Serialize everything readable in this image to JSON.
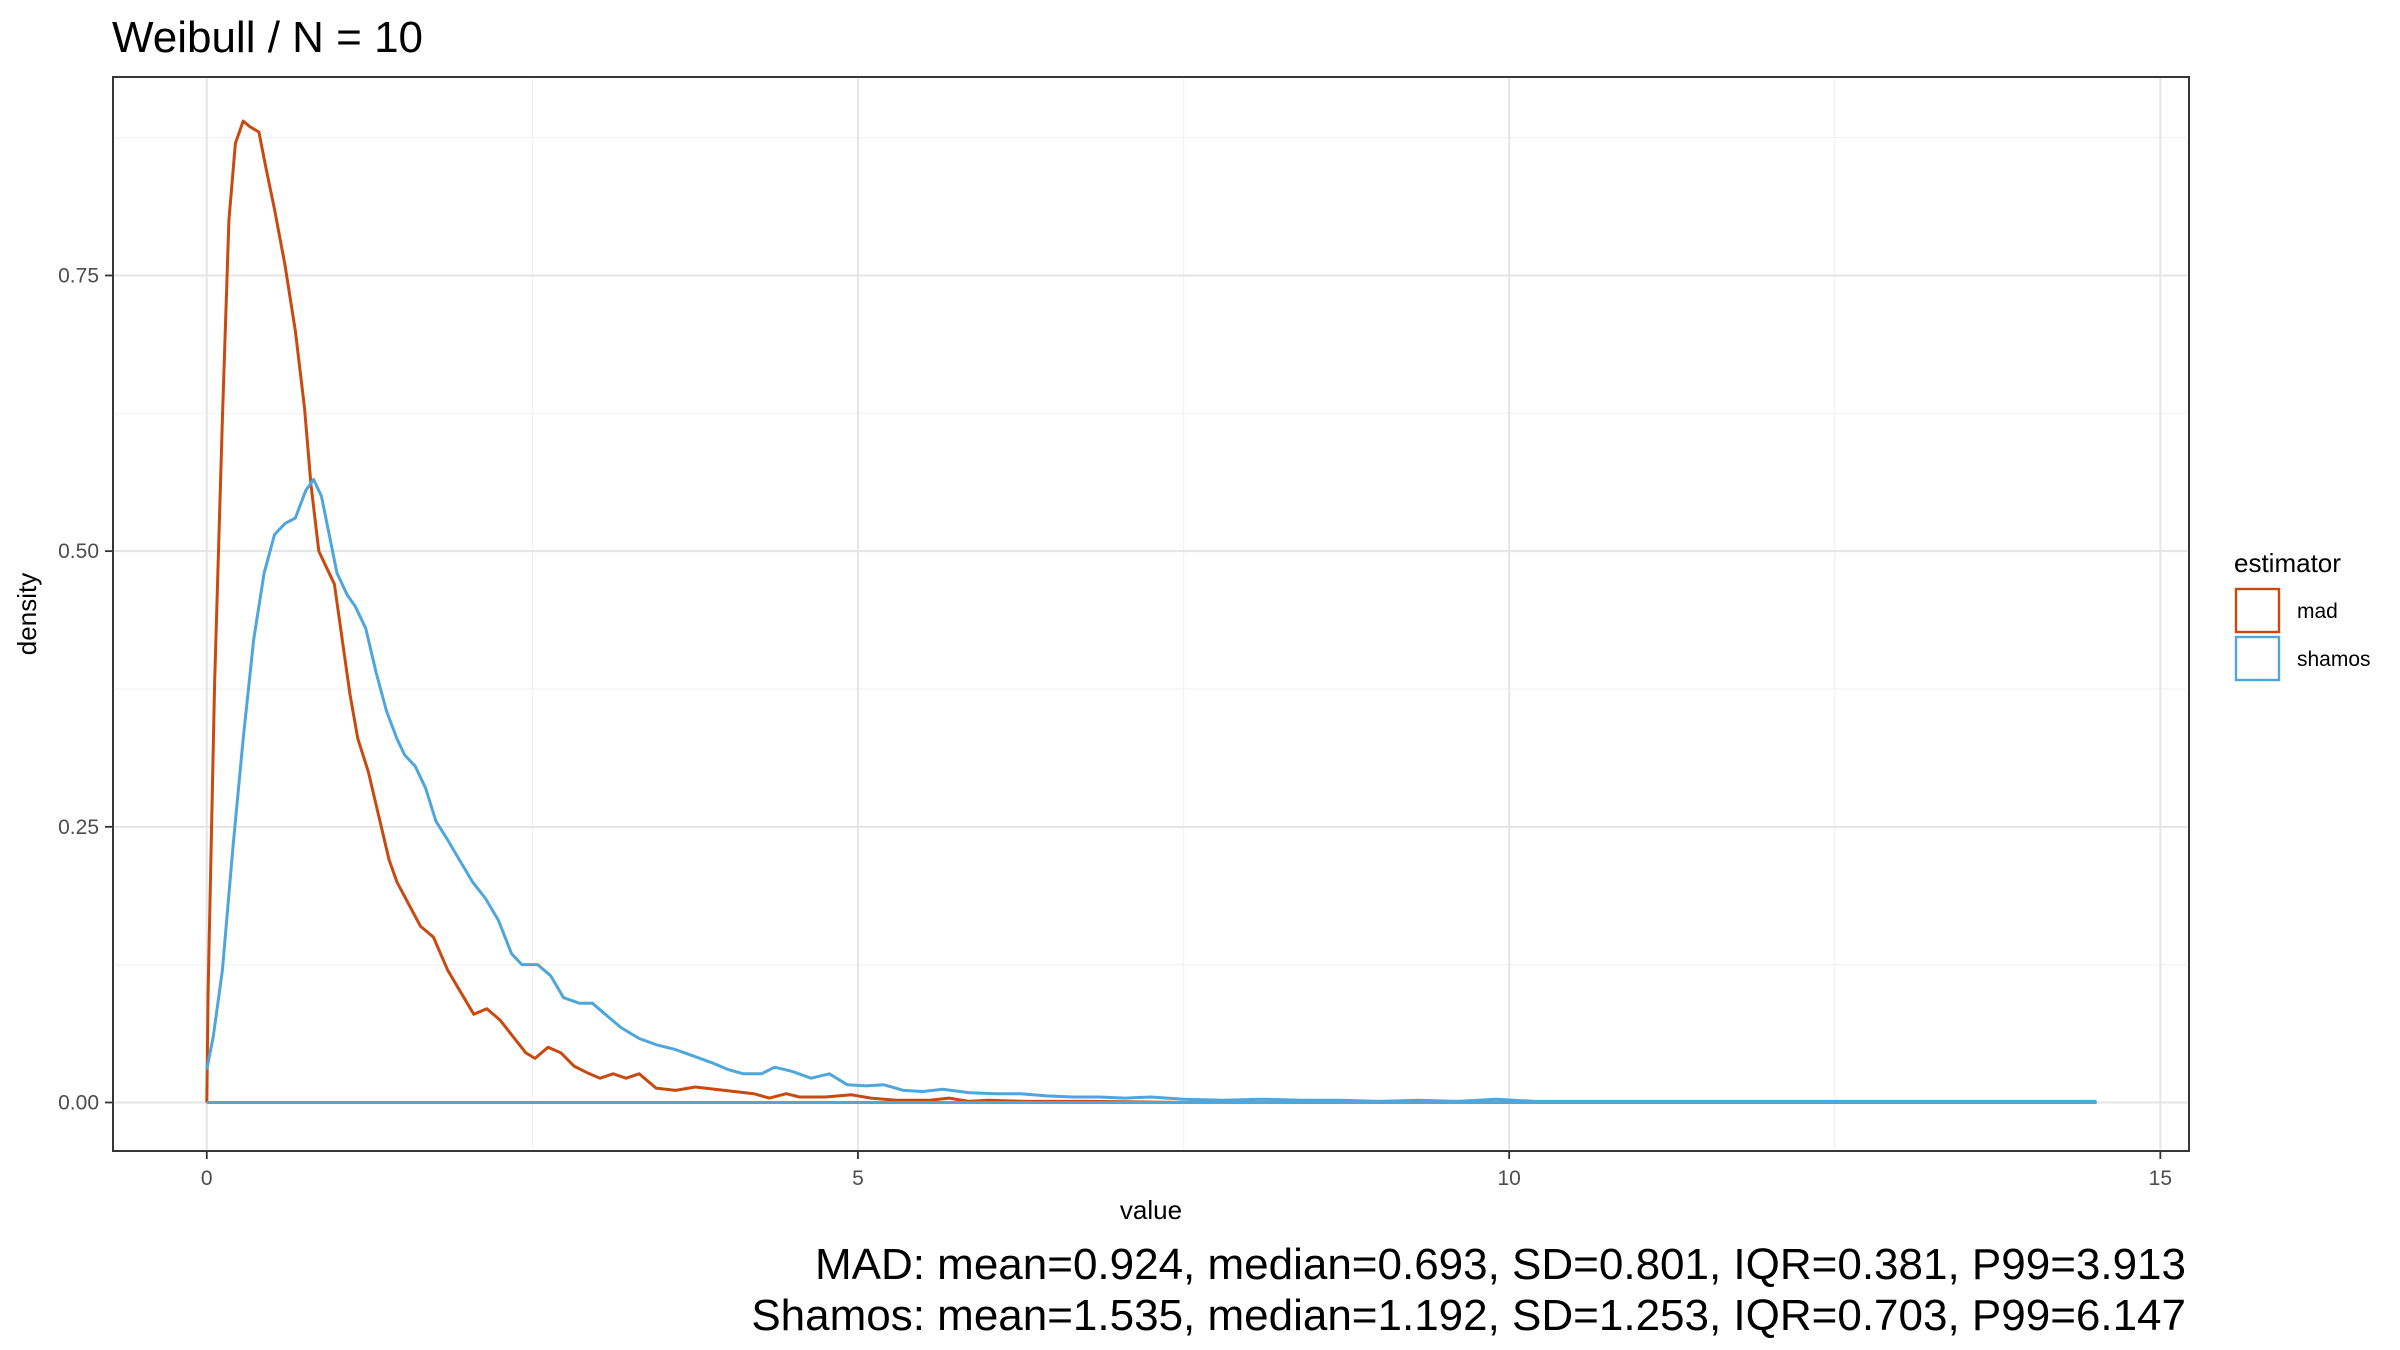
{
  "chart_data": {
    "type": "line",
    "title": "Weibull / N = 10",
    "xlabel": "value",
    "ylabel": "density",
    "xlim": [
      -0.72,
      15.22
    ],
    "ylim": [
      -0.044,
      0.93
    ],
    "x_ticks": [
      0,
      5,
      10,
      15
    ],
    "x_tick_labels": [
      "0",
      "5",
      "10",
      "15"
    ],
    "y_ticks": [
      0,
      0.25,
      0.5,
      0.75
    ],
    "y_tick_labels": [
      "0.00",
      "0.25",
      "0.50",
      "0.75"
    ],
    "grid": true,
    "legend": {
      "title": "estimator",
      "position": "right"
    },
    "series": [
      {
        "name": "mad",
        "color": "#C94A10",
        "points": [
          [
            0,
            0
          ],
          [
            0.01,
            0.1
          ],
          [
            0.06,
            0.38
          ],
          [
            0.12,
            0.62
          ],
          [
            0.17,
            0.8
          ],
          [
            0.22,
            0.87
          ],
          [
            0.28,
            0.89
          ],
          [
            0.33,
            0.885
          ],
          [
            0.4,
            0.88
          ],
          [
            0.45,
            0.85
          ],
          [
            0.52,
            0.81
          ],
          [
            0.6,
            0.76
          ],
          [
            0.68,
            0.7
          ],
          [
            0.75,
            0.63
          ],
          [
            0.8,
            0.56
          ],
          [
            0.86,
            0.5
          ],
          [
            0.92,
            0.485
          ],
          [
            0.98,
            0.47
          ],
          [
            1.04,
            0.42
          ],
          [
            1.1,
            0.37
          ],
          [
            1.16,
            0.33
          ],
          [
            1.24,
            0.3
          ],
          [
            1.32,
            0.26
          ],
          [
            1.4,
            0.22
          ],
          [
            1.46,
            0.2
          ],
          [
            1.55,
            0.18
          ],
          [
            1.64,
            0.16
          ],
          [
            1.74,
            0.15
          ],
          [
            1.85,
            0.12
          ],
          [
            1.95,
            0.1
          ],
          [
            2.05,
            0.08
          ],
          [
            2.15,
            0.085
          ],
          [
            2.25,
            0.075
          ],
          [
            2.35,
            0.06
          ],
          [
            2.45,
            0.045
          ],
          [
            2.52,
            0.04
          ],
          [
            2.62,
            0.05
          ],
          [
            2.72,
            0.045
          ],
          [
            2.82,
            0.033
          ],
          [
            2.92,
            0.027
          ],
          [
            3.02,
            0.022
          ],
          [
            3.12,
            0.026
          ],
          [
            3.22,
            0.022
          ],
          [
            3.32,
            0.026
          ],
          [
            3.45,
            0.013
          ],
          [
            3.6,
            0.011
          ],
          [
            3.75,
            0.014
          ],
          [
            3.9,
            0.012
          ],
          [
            4.05,
            0.01
          ],
          [
            4.2,
            0.008
          ],
          [
            4.32,
            0.004
          ],
          [
            4.45,
            0.008
          ],
          [
            4.55,
            0.005
          ],
          [
            4.75,
            0.005
          ],
          [
            4.95,
            0.007
          ],
          [
            5.1,
            0.004
          ],
          [
            5.3,
            0.002
          ],
          [
            5.55,
            0.002
          ],
          [
            5.7,
            0.004
          ],
          [
            5.85,
            0.001
          ],
          [
            6.0,
            0.002
          ],
          [
            6.3,
            0.001
          ],
          [
            6.8,
            0.001
          ],
          [
            7.5,
            0.0
          ],
          [
            8.5,
            0.0
          ],
          [
            10.5,
            0.0
          ],
          [
            12.5,
            0.0
          ],
          [
            14.5,
            0.0
          ]
        ]
      },
      {
        "name": "shamos",
        "color": "#4EA6DC",
        "points": [
          [
            0,
            0.03
          ],
          [
            0.05,
            0.06
          ],
          [
            0.12,
            0.12
          ],
          [
            0.2,
            0.23
          ],
          [
            0.28,
            0.33
          ],
          [
            0.36,
            0.42
          ],
          [
            0.44,
            0.48
          ],
          [
            0.52,
            0.515
          ],
          [
            0.6,
            0.525
          ],
          [
            0.68,
            0.53
          ],
          [
            0.76,
            0.555
          ],
          [
            0.82,
            0.565
          ],
          [
            0.88,
            0.55
          ],
          [
            0.94,
            0.515
          ],
          [
            1.0,
            0.48
          ],
          [
            1.08,
            0.46
          ],
          [
            1.14,
            0.45
          ],
          [
            1.22,
            0.43
          ],
          [
            1.3,
            0.39
          ],
          [
            1.38,
            0.355
          ],
          [
            1.46,
            0.33
          ],
          [
            1.52,
            0.315
          ],
          [
            1.6,
            0.305
          ],
          [
            1.68,
            0.285
          ],
          [
            1.76,
            0.255
          ],
          [
            1.84,
            0.24
          ],
          [
            1.94,
            0.22
          ],
          [
            2.04,
            0.2
          ],
          [
            2.14,
            0.185
          ],
          [
            2.24,
            0.165
          ],
          [
            2.34,
            0.135
          ],
          [
            2.42,
            0.125
          ],
          [
            2.54,
            0.125
          ],
          [
            2.64,
            0.115
          ],
          [
            2.74,
            0.095
          ],
          [
            2.86,
            0.09
          ],
          [
            2.96,
            0.09
          ],
          [
            3.06,
            0.08
          ],
          [
            3.18,
            0.068
          ],
          [
            3.32,
            0.058
          ],
          [
            3.46,
            0.052
          ],
          [
            3.6,
            0.048
          ],
          [
            3.74,
            0.042
          ],
          [
            3.88,
            0.036
          ],
          [
            4.0,
            0.03
          ],
          [
            4.12,
            0.026
          ],
          [
            4.26,
            0.026
          ],
          [
            4.36,
            0.032
          ],
          [
            4.5,
            0.028
          ],
          [
            4.64,
            0.022
          ],
          [
            4.78,
            0.026
          ],
          [
            4.92,
            0.016
          ],
          [
            5.06,
            0.015
          ],
          [
            5.2,
            0.016
          ],
          [
            5.35,
            0.011
          ],
          [
            5.5,
            0.01
          ],
          [
            5.65,
            0.012
          ],
          [
            5.85,
            0.009
          ],
          [
            6.05,
            0.008
          ],
          [
            6.25,
            0.008
          ],
          [
            6.45,
            0.006
          ],
          [
            6.65,
            0.005
          ],
          [
            6.85,
            0.005
          ],
          [
            7.05,
            0.004
          ],
          [
            7.25,
            0.005
          ],
          [
            7.5,
            0.003
          ],
          [
            7.8,
            0.002
          ],
          [
            8.1,
            0.003
          ],
          [
            8.4,
            0.002
          ],
          [
            8.7,
            0.002
          ],
          [
            9.0,
            0.001
          ],
          [
            9.3,
            0.002
          ],
          [
            9.6,
            0.001
          ],
          [
            9.9,
            0.003
          ],
          [
            10.2,
            0.001
          ],
          [
            10.6,
            0.001
          ],
          [
            11.0,
            0.001
          ],
          [
            11.5,
            0.001
          ],
          [
            12.0,
            0.001
          ],
          [
            12.5,
            0.001
          ],
          [
            13.0,
            0.001
          ],
          [
            13.5,
            0.001
          ],
          [
            14.0,
            0.001
          ],
          [
            14.5,
            0.001
          ]
        ]
      }
    ]
  },
  "captions": {
    "line1": "MAD: mean=0.924, median=0.693, SD=0.801, IQR=0.381, P99=3.913",
    "line2": "Shamos: mean=1.535, median=1.192, SD=1.253, IQR=0.703, P99=6.147"
  }
}
